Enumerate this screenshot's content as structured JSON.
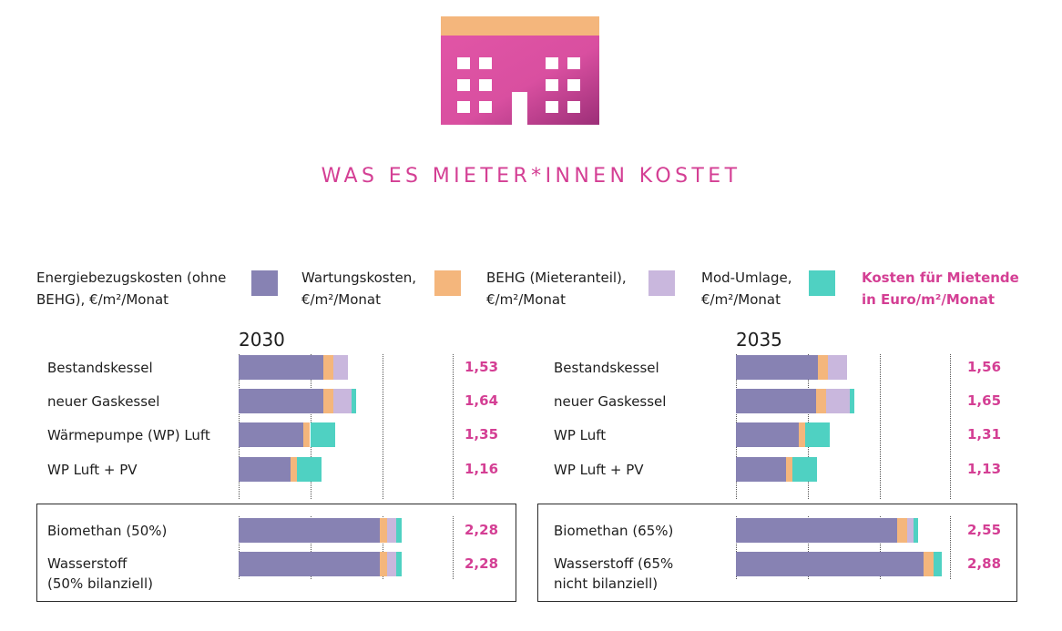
{
  "title": "WAS ES MIETER*INNEN KOSTET",
  "legend": {
    "energie": "Energiebezugskosten (ohne\nBEHG), €/m²/Monat",
    "wartung": "Wartungskosten,\n€/m²/Monat",
    "behg": "BEHG (Mieteranteil),\n€/m²/Monat",
    "mod": "Mod-Umlage,\n€/m²/Monat",
    "total": "Kosten für Mietende\nin Euro/m²/Monat"
  },
  "colors": {
    "energie": "#8782b3",
    "wartung": "#f4b67c",
    "behg": "#c9b7dd",
    "mod": "#4fd1c2",
    "total_text": "#d43f94",
    "roof": "#f4b67c",
    "building": "#d94fa0"
  },
  "icon": "building-icon",
  "chart_data": [
    {
      "type": "bar",
      "orientation": "horizontal",
      "stacked": true,
      "year": "2030",
      "series_names": [
        "Energiebezugskosten (ohne BEHG)",
        "Wartungskosten",
        "BEHG (Mieteranteil)",
        "Mod-Umlage"
      ],
      "xlim": [
        0,
        3
      ],
      "grid": "vertical dotted",
      "rows": [
        {
          "label": "Bestandskessel",
          "values": [
            1.18,
            0.14,
            0.21,
            0.0
          ],
          "total": "1,53",
          "boxed": false
        },
        {
          "label": "neuer Gaskessel",
          "values": [
            1.18,
            0.14,
            0.26,
            0.06
          ],
          "total": "1,64",
          "boxed": false
        },
        {
          "label": "Wärmepumpe (WP) Luft",
          "values": [
            0.9,
            0.1,
            0.0,
            0.35
          ],
          "total": "1,35",
          "boxed": false
        },
        {
          "label": "WP Luft + PV",
          "values": [
            0.72,
            0.1,
            0.0,
            0.34
          ],
          "total": "1,16",
          "boxed": false
        },
        {
          "label": "Biomethan (50%)",
          "values": [
            1.98,
            0.1,
            0.12,
            0.08
          ],
          "total": "2,28",
          "boxed": true
        },
        {
          "label": "Wasserstoff\n(50% bilanziell)",
          "values": [
            1.98,
            0.1,
            0.12,
            0.08
          ],
          "total": "2,28",
          "boxed": true
        }
      ]
    },
    {
      "type": "bar",
      "orientation": "horizontal",
      "stacked": true,
      "year": "2035",
      "series_names": [
        "Energiebezugskosten (ohne BEHG)",
        "Wartungskosten",
        "BEHG (Mieteranteil)",
        "Mod-Umlage"
      ],
      "xlim": [
        0,
        3
      ],
      "grid": "vertical dotted",
      "rows": [
        {
          "label": "Bestandskessel",
          "values": [
            1.15,
            0.14,
            0.27,
            0.0
          ],
          "total": "1,56",
          "boxed": false
        },
        {
          "label": "neuer Gaskessel",
          "values": [
            1.12,
            0.14,
            0.33,
            0.06
          ],
          "total": "1,65",
          "boxed": false
        },
        {
          "label": "WP Luft",
          "values": [
            0.88,
            0.09,
            0.0,
            0.34
          ],
          "total": "1,31",
          "boxed": false
        },
        {
          "label": "WP Luft + PV",
          "values": [
            0.7,
            0.09,
            0.0,
            0.34
          ],
          "total": "1,13",
          "boxed": false
        },
        {
          "label": "Biomethan (65%)",
          "values": [
            2.25,
            0.14,
            0.09,
            0.07
          ],
          "total": "2,55",
          "boxed": true
        },
        {
          "label": "Wasserstoff (65%\nnicht bilanziell)",
          "values": [
            2.63,
            0.13,
            0.0,
            0.12
          ],
          "total": "2,88",
          "boxed": true
        }
      ]
    }
  ]
}
